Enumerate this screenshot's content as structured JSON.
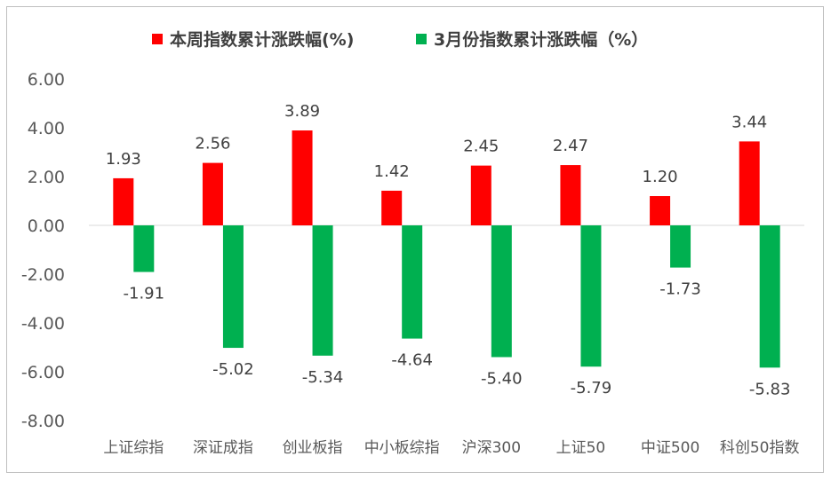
{
  "chart_data": {
    "type": "bar",
    "title": "",
    "xlabel": "",
    "ylabel": "",
    "ylim": [
      -8,
      6
    ],
    "yticks": [
      "6.00",
      "4.00",
      "2.00",
      "0.00",
      "-2.00",
      "-4.00",
      "-6.00",
      "-8.00"
    ],
    "ytick_values": [
      6,
      4,
      2,
      0,
      -2,
      -4,
      -6,
      -8
    ],
    "grid": false,
    "legend_position": "top",
    "categories": [
      "上证综指",
      "深证成指",
      "创业板指",
      "中小板综指",
      "沪深300",
      "上证50",
      "中证500",
      "科创50指数"
    ],
    "series": [
      {
        "name": "本周指数累计涨跌幅(%)",
        "color": "#ff0000",
        "values": [
          1.93,
          2.56,
          3.89,
          1.42,
          2.45,
          2.47,
          1.2,
          3.44
        ],
        "labels": [
          "1.93",
          "2.56",
          "3.89",
          "1.42",
          "2.45",
          "2.47",
          "1.20",
          "3.44"
        ]
      },
      {
        "name": "3月份指数累计涨跌幅（%）",
        "color": "#00b050",
        "values": [
          -1.91,
          -5.02,
          -5.34,
          -4.64,
          -5.4,
          -5.79,
          -1.73,
          -5.83
        ],
        "labels": [
          "-1.91",
          "-5.02",
          "-5.34",
          "-4.64",
          "-5.40",
          "-5.79",
          "-1.73",
          "-5.83"
        ]
      }
    ]
  }
}
